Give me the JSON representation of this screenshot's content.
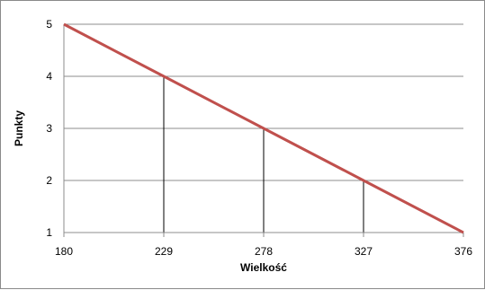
{
  "chart_data": {
    "type": "line",
    "xlabel": "Wielkość",
    "ylabel": "Punkty",
    "x": [
      180,
      229,
      278,
      327,
      376
    ],
    "x_tick_labels": [
      "180",
      "229",
      "278",
      "327",
      "376"
    ],
    "y_tick_labels": [
      "1",
      "2",
      "3",
      "4",
      "5"
    ],
    "xlim": [
      180,
      376
    ],
    "ylim": [
      1,
      5
    ],
    "grid": true,
    "series": [
      {
        "values": [
          5,
          4,
          3,
          2,
          1
        ],
        "color": "#c0504d"
      }
    ],
    "drop_lines": true
  }
}
